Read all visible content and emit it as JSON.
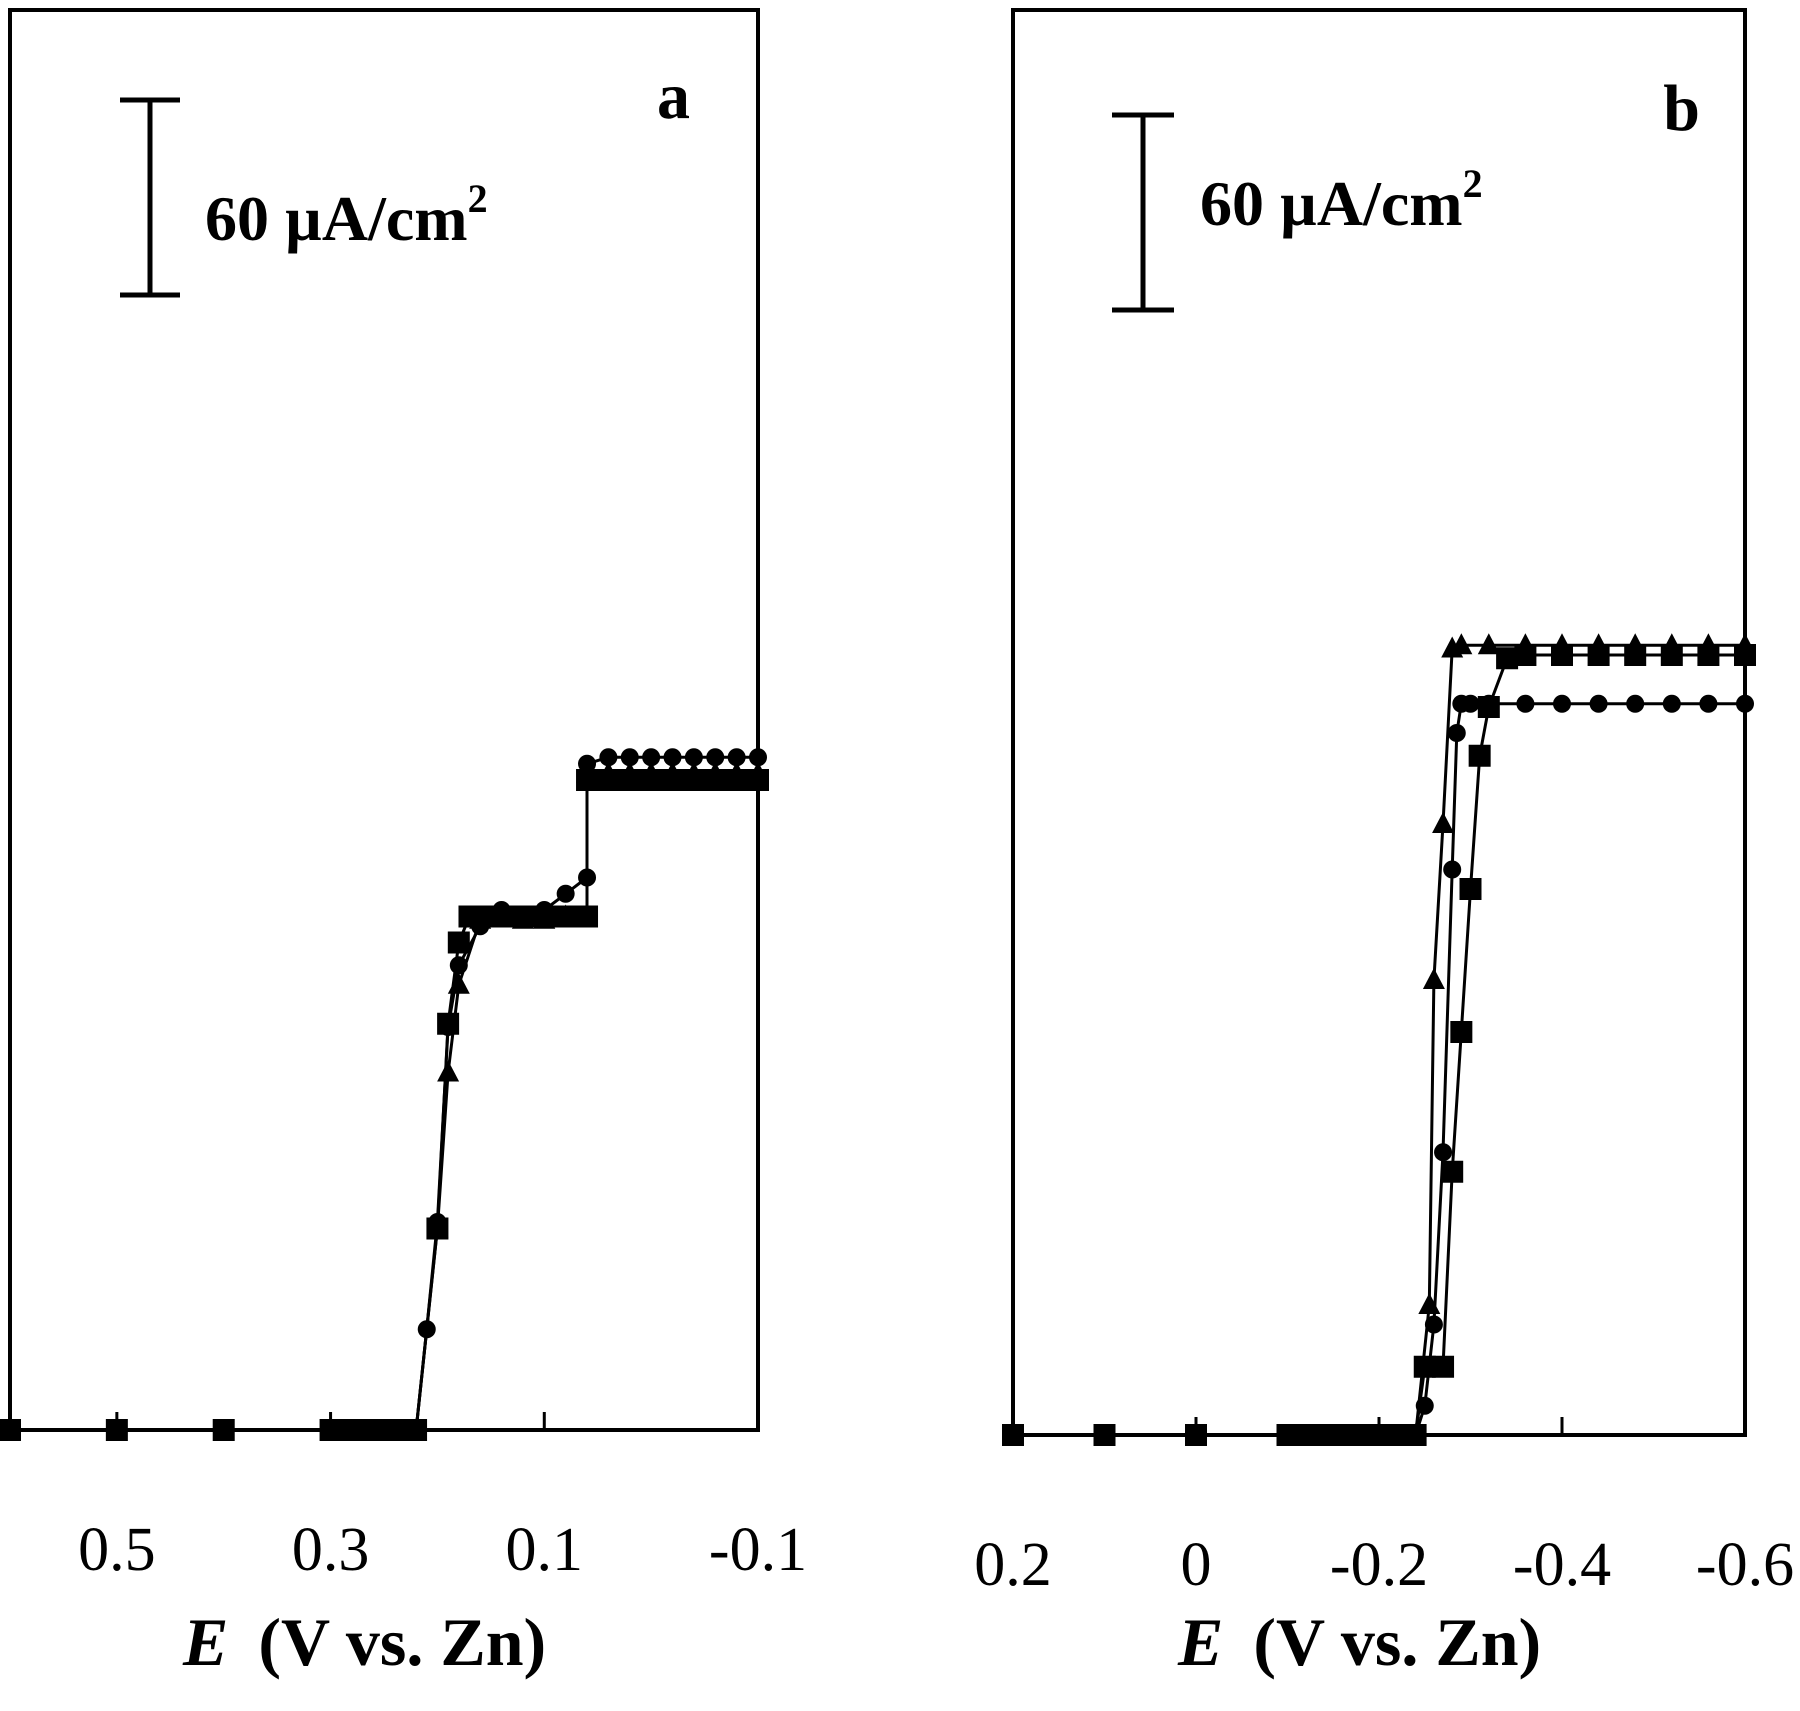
{
  "chart_data": [
    {
      "type": "line",
      "panel_label": "a",
      "scale_bar_label": "60 µA/cm",
      "scale_bar_sup": "2",
      "scale_bar_value": 60,
      "xlabel_var": "E",
      "xlabel_units": "(V vs. Zn)",
      "xlim": [
        0.6,
        -0.1
      ],
      "ylim": [
        0,
        300
      ],
      "x_ticks": [
        0.5,
        0.3,
        0.1,
        -0.1
      ],
      "x_tick_labels": [
        "0.5",
        "0.3",
        "0.1",
        "-0.1"
      ],
      "series": [
        {
          "marker": "square",
          "points": [
            [
              0.6,
              0
            ],
            [
              0.5,
              0
            ],
            [
              0.4,
              0
            ],
            [
              0.3,
              0
            ],
            [
              0.28,
              0
            ],
            [
              0.26,
              0
            ],
            [
              0.24,
              0
            ],
            [
              0.22,
              0
            ],
            [
              0.2,
              62
            ],
            [
              0.19,
              125
            ],
            [
              0.18,
              150
            ],
            [
              0.17,
              158
            ],
            [
              0.16,
              158
            ],
            [
              0.14,
              158
            ],
            [
              0.12,
              158
            ],
            [
              0.1,
              158
            ],
            [
              0.08,
              158
            ],
            [
              0.06,
              158
            ],
            [
              0.06,
              200
            ],
            [
              0.04,
              200
            ],
            [
              0.02,
              200
            ],
            [
              0.0,
              200
            ],
            [
              -0.02,
              200
            ],
            [
              -0.04,
              200
            ],
            [
              -0.06,
              200
            ],
            [
              -0.08,
              200
            ],
            [
              -0.1,
              200
            ]
          ]
        },
        {
          "marker": "circle",
          "points": [
            [
              0.22,
              0
            ],
            [
              0.21,
              31
            ],
            [
              0.2,
              64
            ],
            [
              0.19,
              124
            ],
            [
              0.18,
              143
            ],
            [
              0.16,
              155
            ],
            [
              0.14,
              160
            ],
            [
              0.12,
              158
            ],
            [
              0.1,
              160
            ],
            [
              0.08,
              165
            ],
            [
              0.06,
              170
            ],
            [
              0.06,
              205
            ],
            [
              0.04,
              207
            ],
            [
              0.02,
              207
            ],
            [
              0.0,
              207
            ],
            [
              -0.02,
              207
            ],
            [
              -0.04,
              207
            ],
            [
              -0.06,
              207
            ],
            [
              -0.08,
              207
            ],
            [
              -0.1,
              207
            ]
          ]
        },
        {
          "marker": "triangle",
          "points": [
            [
              0.22,
              0
            ],
            [
              0.2,
              62
            ],
            [
              0.19,
              110
            ],
            [
              0.18,
              137
            ],
            [
              0.16,
              157
            ],
            [
              0.14,
              158
            ],
            [
              0.12,
              157
            ],
            [
              0.1,
              157
            ],
            [
              0.08,
              158
            ],
            [
              0.06,
              158
            ],
            [
              0.06,
              202
            ],
            [
              0.04,
              202
            ],
            [
              0.02,
              202
            ],
            [
              0.0,
              202
            ],
            [
              -0.02,
              202
            ],
            [
              -0.04,
              202
            ],
            [
              -0.06,
              202
            ],
            [
              -0.08,
              202
            ],
            [
              -0.1,
              202
            ]
          ]
        }
      ]
    },
    {
      "type": "line",
      "panel_label": "b",
      "scale_bar_label": "60 µA/cm",
      "scale_bar_sup": "2",
      "scale_bar_value": 60,
      "xlabel_var": "E",
      "xlabel_units": "(V vs. Zn)",
      "xlim": [
        0.2,
        -0.6
      ],
      "ylim": [
        0,
        300
      ],
      "x_ticks": [
        0.2,
        0,
        -0.2,
        -0.4,
        -0.6
      ],
      "x_tick_labels": [
        "0.2",
        "0",
        "-0.2",
        "-0.4",
        "-0.6"
      ],
      "series": [
        {
          "marker": "square",
          "points": [
            [
              0.2,
              0
            ],
            [
              0.1,
              0
            ],
            [
              0.0,
              0
            ],
            [
              -0.1,
              0
            ],
            [
              -0.12,
              0
            ],
            [
              -0.14,
              0
            ],
            [
              -0.16,
              0
            ],
            [
              -0.18,
              0
            ],
            [
              -0.2,
              0
            ],
            [
              -0.22,
              0
            ],
            [
              -0.24,
              0
            ],
            [
              -0.25,
              21
            ],
            [
              -0.27,
              21
            ],
            [
              -0.28,
              81
            ],
            [
              -0.29,
              124
            ],
            [
              -0.3,
              168
            ],
            [
              -0.31,
              209
            ],
            [
              -0.32,
              224
            ],
            [
              -0.34,
              239
            ],
            [
              -0.36,
              240
            ],
            [
              -0.4,
              240
            ],
            [
              -0.44,
              240
            ],
            [
              -0.48,
              240
            ],
            [
              -0.52,
              240
            ],
            [
              -0.56,
              240
            ],
            [
              -0.6,
              240
            ]
          ]
        },
        {
          "marker": "circle",
          "points": [
            [
              -0.24,
              0
            ],
            [
              -0.25,
              9
            ],
            [
              -0.26,
              34
            ],
            [
              -0.27,
              87
            ],
            [
              -0.28,
              174
            ],
            [
              -0.285,
              216
            ],
            [
              -0.29,
              225
            ],
            [
              -0.3,
              225
            ],
            [
              -0.32,
              225
            ],
            [
              -0.36,
              225
            ],
            [
              -0.4,
              225
            ],
            [
              -0.44,
              225
            ],
            [
              -0.48,
              225
            ],
            [
              -0.52,
              225
            ],
            [
              -0.56,
              225
            ],
            [
              -0.6,
              225
            ]
          ]
        },
        {
          "marker": "triangle",
          "points": [
            [
              -0.24,
              0
            ],
            [
              -0.255,
              40
            ],
            [
              -0.26,
              140
            ],
            [
              -0.27,
              188
            ],
            [
              -0.28,
              242
            ],
            [
              -0.29,
              243
            ],
            [
              -0.32,
              243
            ],
            [
              -0.36,
              243
            ],
            [
              -0.4,
              243
            ],
            [
              -0.44,
              243
            ],
            [
              -0.48,
              243
            ],
            [
              -0.52,
              243
            ],
            [
              -0.56,
              243
            ],
            [
              -0.6,
              243
            ]
          ]
        }
      ]
    }
  ]
}
